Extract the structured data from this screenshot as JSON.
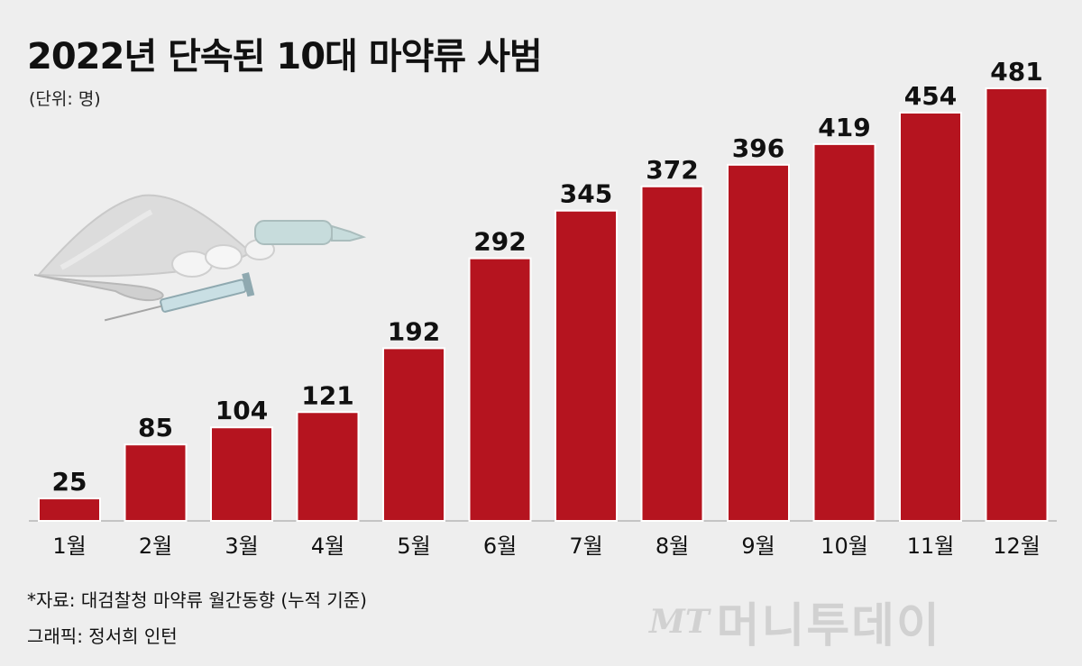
{
  "header": {
    "title": "2022년 단속된 10대 마약류 사범",
    "unit": "(단위: 명)"
  },
  "footer": {
    "source": "*자료: 대검찰청 마약류 월간동향 (누적 기준)",
    "credit": "그래픽: 정서희 인턴",
    "logo_mark": "MT",
    "logo_name": "머니투데이"
  },
  "colors": {
    "bar": "#b5141f",
    "background": "#eeeeee",
    "text": "#111111"
  },
  "chart_data": {
    "type": "bar",
    "title": "2022년 단속된 10대 마약류 사범",
    "categories": [
      "1월",
      "2월",
      "3월",
      "4월",
      "5월",
      "6월",
      "7월",
      "8월",
      "9월",
      "10월",
      "11월",
      "12월"
    ],
    "values": [
      25,
      85,
      104,
      121,
      192,
      292,
      345,
      372,
      396,
      419,
      454,
      481
    ],
    "xlabel": "",
    "ylabel": "",
    "ylim": [
      0,
      481
    ],
    "grid": false,
    "legend": "none"
  }
}
